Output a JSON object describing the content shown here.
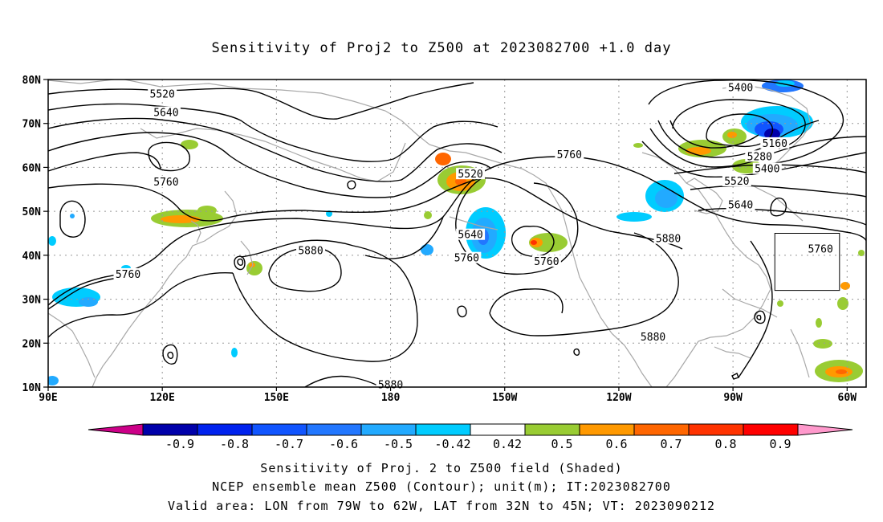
{
  "title": "Sensitivity of Proj2 to Z500 at 2023082700 +1.0 day",
  "map": {
    "lat_labels": [
      "80N",
      "70N",
      "60N",
      "50N",
      "40N",
      "30N",
      "20N",
      "10N"
    ],
    "lon_labels": [
      "90E",
      "120E",
      "150E",
      "180",
      "150W",
      "120W",
      "90W",
      "60W"
    ],
    "contour_labels": [
      {
        "text": "5520",
        "lon": 120,
        "lat": 76.6
      },
      {
        "text": "5640",
        "lon": 121,
        "lat": 72.4
      },
      {
        "text": "5760",
        "lon": 121,
        "lat": 56.6
      },
      {
        "text": "5760",
        "lon": 111,
        "lat": 35.6
      },
      {
        "text": "5880",
        "lon": 159,
        "lat": 41.0
      },
      {
        "text": "5880",
        "lon": 180,
        "lat": 10.5
      },
      {
        "text": "5520",
        "lon": 201,
        "lat": 58.4
      },
      {
        "text": "5640",
        "lon": 201,
        "lat": 44.6
      },
      {
        "text": "5760",
        "lon": 200,
        "lat": 39.3
      },
      {
        "text": "5760",
        "lon": 221,
        "lat": 38.5
      },
      {
        "text": "5760",
        "lon": 227,
        "lat": 62.8
      },
      {
        "text": "5880",
        "lon": 253,
        "lat": 43.7
      },
      {
        "text": "5880",
        "lon": 249,
        "lat": 21.3
      },
      {
        "text": "5400",
        "lon": 272,
        "lat": 78.1
      },
      {
        "text": "5160",
        "lon": 281,
        "lat": 65.4
      },
      {
        "text": "5280",
        "lon": 277,
        "lat": 62.4
      },
      {
        "text": "5400",
        "lon": 279,
        "lat": 59.6
      },
      {
        "text": "5520",
        "lon": 271,
        "lat": 56.8
      },
      {
        "text": "5640",
        "lon": 272,
        "lat": 51.4
      },
      {
        "text": "5760",
        "lon": 293,
        "lat": 41.3
      }
    ],
    "valid_box": {
      "lon_west": -79,
      "lon_east": -62,
      "lat_south": 32,
      "lat_north": 45
    }
  },
  "colorbar": {
    "labels": [
      "-0.9",
      "-0.8",
      "-0.7",
      "-0.6",
      "-0.5",
      "-0.42",
      "0.42",
      "0.5",
      "0.6",
      "0.7",
      "0.8",
      "0.9"
    ],
    "colors": [
      "#0000aa",
      "#0022ee",
      "#1155ff",
      "#2277ff",
      "#22aaff",
      "#00ccff",
      "#ffffff",
      "#99cc33",
      "#ff9900",
      "#ff6600",
      "#ff3300",
      "#ff0000"
    ],
    "low_extend_color": "#cc0088",
    "high_extend_color": "#ff99cc"
  },
  "captions": {
    "line1": "Sensitivity of Proj. 2 to Z500 field (Shaded)",
    "line2": "NCEP ensemble mean Z500 (Contour); unit(m); IT:2023082700",
    "line3": "Valid area: LON from 79W to 62W, LAT from 32N to 45N; VT: 2023090212"
  }
}
